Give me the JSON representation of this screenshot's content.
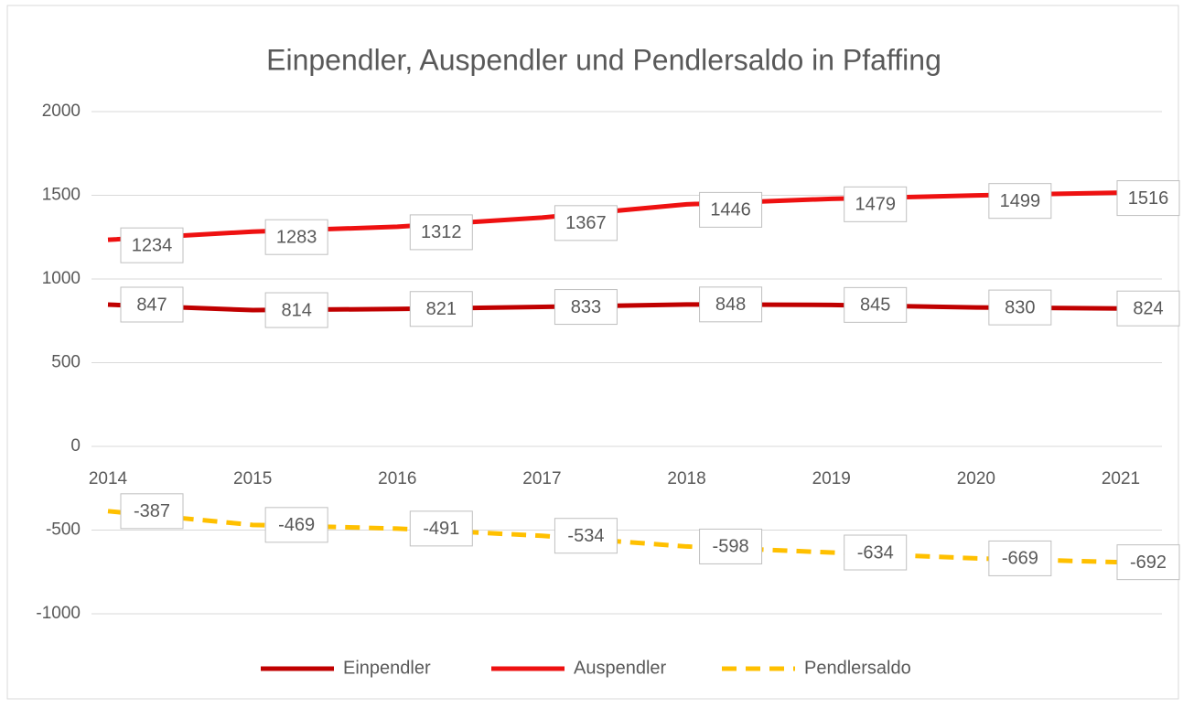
{
  "chart_data": {
    "type": "line",
    "title": "Einpendler, Auspendler und Pendlersaldo in Pfaffing",
    "categories": [
      "2014",
      "2015",
      "2016",
      "2017",
      "2018",
      "2019",
      "2020",
      "2021"
    ],
    "series": [
      {
        "name": "Einpendler",
        "color": "#c00000",
        "values": [
          847,
          814,
          821,
          833,
          848,
          845,
          830,
          824
        ]
      },
      {
        "name": "Auspendler",
        "color": "#ee1111",
        "values": [
          1234,
          1283,
          1312,
          1367,
          1446,
          1479,
          1499,
          1516
        ]
      },
      {
        "name": "Pendlersaldo",
        "color": "#ffc000",
        "line_style": "dashed",
        "values": [
          -387,
          -469,
          -491,
          -534,
          -598,
          -634,
          -669,
          -692
        ]
      }
    ],
    "ylim": [
      -1000,
      2000
    ],
    "yticks": [
      -1000,
      -500,
      0,
      500,
      1000,
      1500,
      2000
    ],
    "grid": true,
    "legend": "bottom"
  }
}
